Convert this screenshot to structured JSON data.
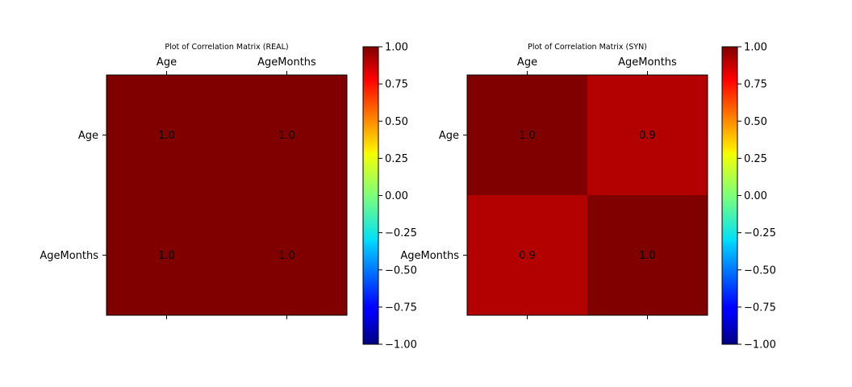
{
  "chart_data": [
    {
      "type": "heatmap",
      "title": "Plot of Correlation Matrix (REAL)",
      "x_categories": [
        "Age",
        "AgeMonths"
      ],
      "y_categories": [
        "Age",
        "AgeMonths"
      ],
      "values": [
        [
          1.0,
          1.0
        ],
        [
          1.0,
          1.0
        ]
      ],
      "cell_labels": [
        [
          "1.0",
          "1.0"
        ],
        [
          "1.0",
          "1.0"
        ]
      ],
      "colormap": "jet",
      "vmin": -1.0,
      "vmax": 1.0,
      "colorbar_ticks": [
        "1.00",
        "0.75",
        "0.50",
        "0.25",
        "0.00",
        "−0.25",
        "−0.50",
        "−0.75",
        "−1.00"
      ]
    },
    {
      "type": "heatmap",
      "title": "Plot of Correlation Matrix (SYN)",
      "x_categories": [
        "Age",
        "AgeMonths"
      ],
      "y_categories": [
        "Age",
        "AgeMonths"
      ],
      "values": [
        [
          1.0,
          0.9
        ],
        [
          0.9,
          1.0
        ]
      ],
      "cell_labels": [
        [
          "1.0",
          "0.9"
        ],
        [
          "0.9",
          "1.0"
        ]
      ],
      "colormap": "jet",
      "vmin": -1.0,
      "vmax": 1.0,
      "colorbar_ticks": [
        "1.00",
        "0.75",
        "0.50",
        "0.25",
        "0.00",
        "−0.25",
        "−0.50",
        "−0.75",
        "−1.00"
      ]
    }
  ]
}
